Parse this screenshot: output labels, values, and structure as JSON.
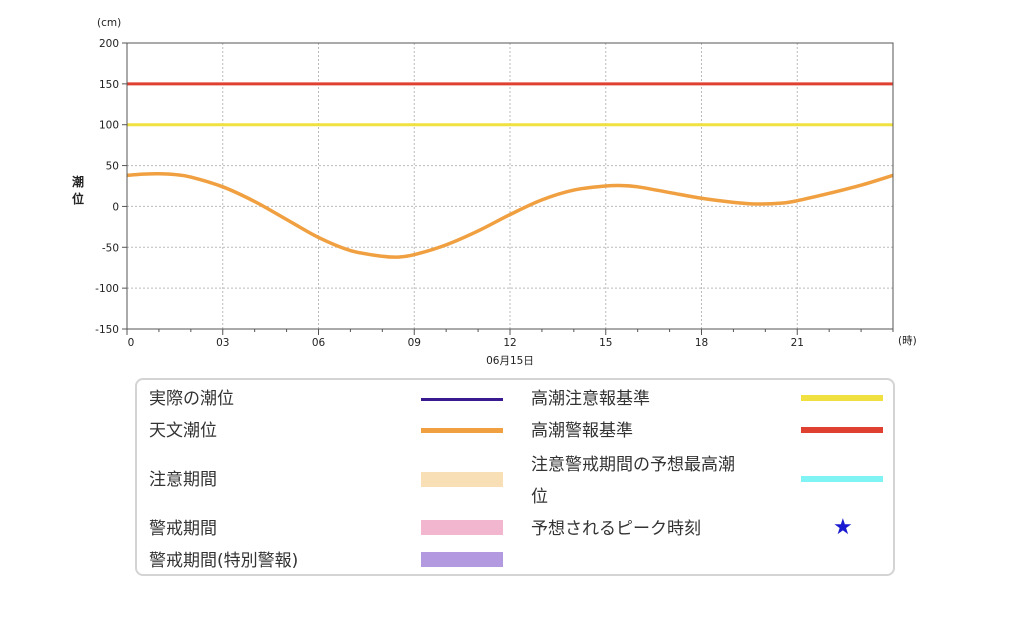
{
  "chart_data": {
    "type": "line",
    "y_unit": "(cm)",
    "x_unit": "(時)",
    "ylabel": "潮位",
    "date_label": "06月15日",
    "ylim": [
      -150,
      200
    ],
    "xlim": [
      0,
      24
    ],
    "y_ticks": [
      "200",
      "150",
      "100",
      "50",
      "0",
      "-50",
      "-100",
      "-150"
    ],
    "y_tick_values": [
      200,
      150,
      100,
      50,
      0,
      -50,
      -100,
      -150
    ],
    "x_ticks": [
      "0",
      "03",
      "06",
      "09",
      "12",
      "15",
      "18",
      "21"
    ],
    "x_tick_values": [
      0,
      3,
      6,
      9,
      12,
      15,
      18,
      21
    ],
    "grid": true,
    "series": [
      {
        "name": "天文潮位",
        "color": "#f0a040",
        "x": [
          0,
          0.5,
          1,
          1.5,
          2,
          3,
          4,
          5,
          6,
          7,
          8,
          8.5,
          9,
          10,
          11,
          12,
          13,
          14,
          15,
          15.5,
          16,
          17,
          18,
          19,
          19.7,
          20.5,
          21,
          22,
          23,
          24
        ],
        "values": [
          38,
          39.5,
          40,
          39,
          36,
          24,
          6,
          -16,
          -38,
          -54,
          -61,
          -62,
          -59,
          -47,
          -30,
          -10,
          8,
          20,
          25,
          25.5,
          24,
          17,
          10,
          5,
          3,
          4,
          7,
          16,
          26,
          38
        ]
      },
      {
        "name": "高潮注意報基準",
        "color": "#f0e040",
        "values": [
          100
        ]
      },
      {
        "name": "高潮警報基準",
        "color": "#e04030",
        "values": [
          150
        ]
      }
    ]
  },
  "legend": {
    "left": [
      {
        "label": "実際の潮位",
        "kind": "line",
        "color": "#3a1a90"
      },
      {
        "label": "天文潮位",
        "kind": "line",
        "color": "#f0a040"
      },
      {
        "label": "注意期間",
        "kind": "block",
        "color": "#f8dfb5"
      },
      {
        "label": "警戒期間",
        "kind": "block",
        "color": "#f2b6cf"
      },
      {
        "label": "警戒期間(特別警報)",
        "kind": "block",
        "color": "#b39ae0"
      }
    ],
    "right": [
      {
        "label": "高潮注意報基準",
        "kind": "line",
        "color": "#f0e040"
      },
      {
        "label": "高潮警報基準",
        "kind": "line",
        "color": "#e04030"
      },
      {
        "label_line1": "注意警戒期間の予想最高潮",
        "label_line2": "位",
        "kind": "line",
        "color": "#80f4f4"
      },
      {
        "label": "予想されるピーク時刻",
        "kind": "star",
        "icon": "star-icon",
        "color": "#1a1ad0",
        "glyph": "★"
      }
    ]
  }
}
